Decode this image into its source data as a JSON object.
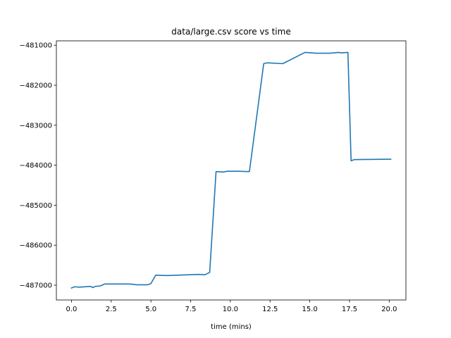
{
  "chart_data": {
    "type": "line",
    "title": "data/large.csv score vs time",
    "xlabel": "time (mins)",
    "ylabel": "",
    "xlim": [
      -0.95,
      21.05
    ],
    "ylim": [
      -487370,
      -480890
    ],
    "xticks": [
      0.0,
      2.5,
      5.0,
      7.5,
      10.0,
      12.5,
      15.0,
      17.5,
      20.0
    ],
    "xtick_labels": [
      "0.0",
      "2.5",
      "5.0",
      "7.5",
      "10.0",
      "12.5",
      "15.0",
      "17.5",
      "20.0"
    ],
    "yticks": [
      -481000,
      -482000,
      -483000,
      -484000,
      -485000,
      -486000,
      -487000
    ],
    "ytick_labels": [
      "−481000",
      "−482000",
      "−483000",
      "−484000",
      "−485000",
      "−486000",
      "−487000"
    ],
    "grid": false,
    "series": [
      {
        "name": "",
        "color": "#1f77b4",
        "x": [
          0.0,
          0.2,
          0.5,
          1.2,
          1.35,
          1.5,
          1.8,
          2.1,
          2.5,
          3.7,
          4.1,
          4.8,
          5.0,
          5.3,
          6.0,
          8.0,
          8.4,
          8.7,
          9.1,
          9.6,
          9.8,
          10.5,
          11.2,
          12.1,
          12.3,
          13.3,
          14.7,
          15.4,
          16.3,
          16.8,
          17.0,
          17.4,
          17.6,
          17.8,
          20.1
        ],
        "y": [
          -487070,
          -487040,
          -487050,
          -487030,
          -487060,
          -487030,
          -487020,
          -486970,
          -486970,
          -486970,
          -486990,
          -486990,
          -486960,
          -486750,
          -486760,
          -486730,
          -486740,
          -486680,
          -484160,
          -484170,
          -484150,
          -484150,
          -484160,
          -481460,
          -481440,
          -481460,
          -481180,
          -481200,
          -481200,
          -481180,
          -481190,
          -481180,
          -483890,
          -483860,
          -483850
        ]
      }
    ]
  }
}
